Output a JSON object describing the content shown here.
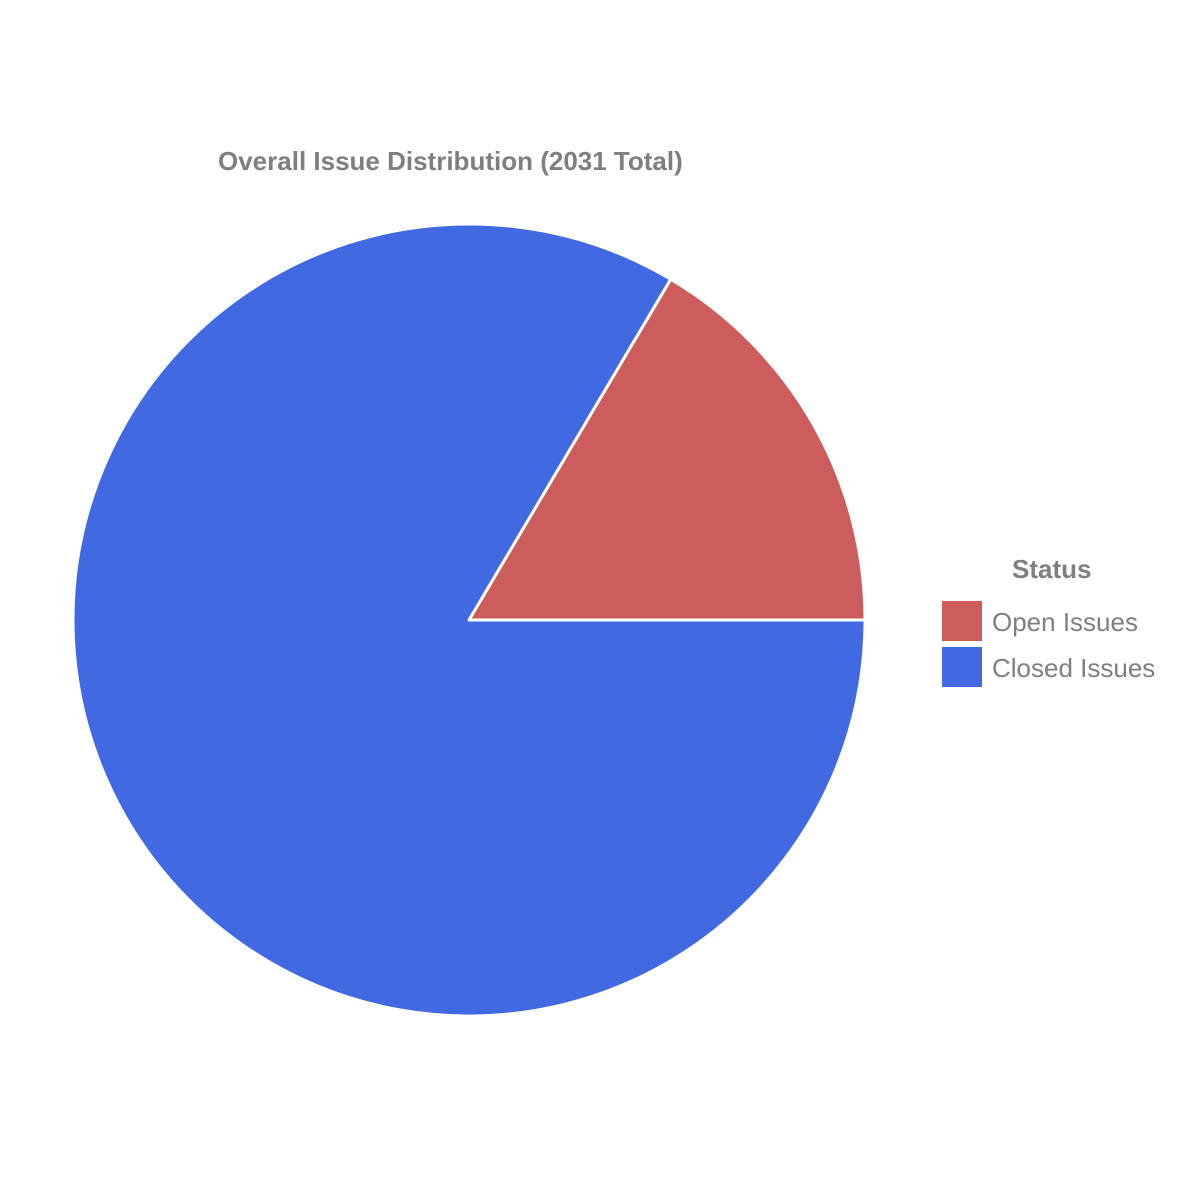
{
  "chart_data": {
    "type": "pie",
    "title": "Overall Issue Distribution (2031 Total)",
    "legend": {
      "title": "Status",
      "placement": "right"
    },
    "slices": [
      {
        "label": "Open Issues",
        "value": 335,
        "color": "#cd5c5c"
      },
      {
        "label": "Closed Issues",
        "value": 1696,
        "color": "#4169e1"
      }
    ],
    "start_angle_deg": 90,
    "direction": "clockwise-from-top"
  }
}
